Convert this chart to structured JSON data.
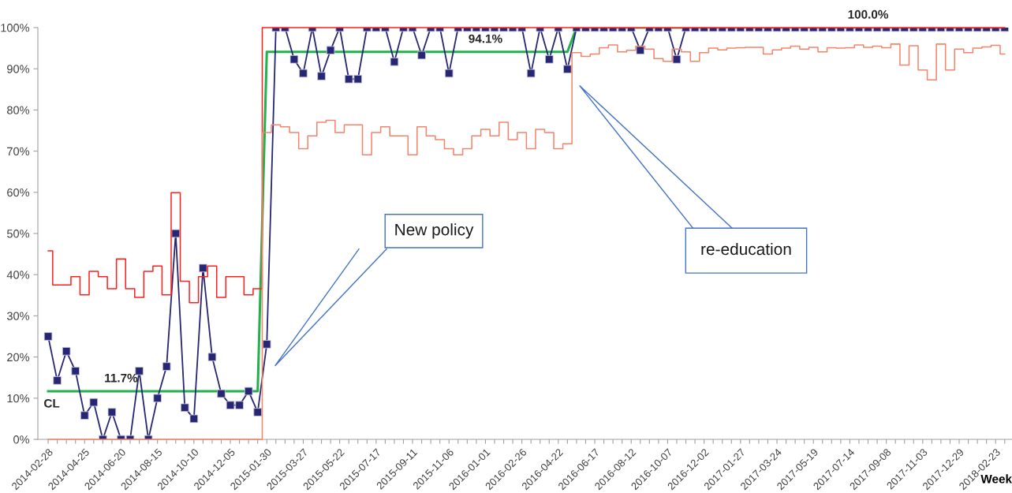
{
  "chart_data": {
    "type": "line",
    "categories": [
      "2014-02-28",
      null,
      null,
      null,
      "2014-04-25",
      null,
      null,
      null,
      "2014-06-20",
      null,
      null,
      null,
      "2014-08-15",
      null,
      null,
      null,
      "2014-10-10",
      null,
      null,
      null,
      "2014-12-05",
      null,
      null,
      null,
      "2015-01-30",
      null,
      null,
      null,
      "2015-03-27",
      null,
      null,
      null,
      "2015-05-22",
      null,
      null,
      null,
      "2015-07-17",
      null,
      null,
      null,
      "2015-09-11",
      null,
      null,
      null,
      "2015-11-06",
      null,
      null,
      null,
      "2016-01-01",
      null,
      null,
      null,
      "2016-02-26",
      null,
      null,
      null,
      "2016-04-22",
      null,
      null,
      null,
      "2016-06-17",
      null,
      null,
      null,
      "2016-08-12",
      null,
      null,
      null,
      "2016-10-07",
      null,
      null,
      null,
      "2016-12-02",
      null,
      null,
      null,
      "2017-01-27",
      null,
      null,
      null,
      "2017-03-24",
      null,
      null,
      null,
      "2017-05-19",
      null,
      null,
      null,
      "2017-07-14",
      null,
      null,
      null,
      "2017-09-08",
      null,
      null,
      null,
      "2017-11-03",
      null,
      null,
      null,
      "2017-12-29",
      null,
      null,
      null,
      "2018-02-23",
      null
    ],
    "xlabel": "Week",
    "ylim": [
      0,
      100
    ],
    "yticks": [
      {
        "value": 0,
        "label": "0%"
      },
      {
        "value": 10,
        "label": "10%"
      },
      {
        "value": 20,
        "label": "20%"
      },
      {
        "value": 30,
        "label": "30%"
      },
      {
        "value": 40,
        "label": "40%"
      },
      {
        "value": 50,
        "label": "50%"
      },
      {
        "value": 60,
        "label": "60%"
      },
      {
        "value": 70,
        "label": "70%"
      },
      {
        "value": 80,
        "label": "80%"
      },
      {
        "value": 90,
        "label": "90%"
      },
      {
        "value": 100,
        "label": "100%"
      }
    ],
    "grid": false,
    "legend": false,
    "series": [
      {
        "type": "step",
        "color": "#ff2020",
        "values": [
          45.8,
          37.5,
          37.5,
          39.5,
          35.1,
          40.8,
          39.5,
          36.6,
          43.8,
          36.6,
          34.5,
          40.8,
          42.1,
          35.1,
          59.9,
          38.4,
          33.2,
          39.5,
          42.1,
          34.5,
          39.5,
          39.5,
          35.1,
          36.6,
          100,
          100,
          100,
          100,
          100,
          100,
          100,
          100,
          100,
          100,
          100,
          100,
          100,
          100,
          100,
          100,
          100,
          100,
          100,
          100,
          100,
          100,
          100,
          100,
          100,
          100,
          100,
          100,
          100,
          100,
          100,
          100,
          100,
          100,
          100,
          100,
          100,
          100,
          100,
          100,
          100,
          100,
          100,
          100,
          100,
          100,
          100,
          100,
          100,
          100,
          100,
          100,
          100,
          100,
          100,
          100,
          100,
          100,
          100,
          100,
          100,
          100,
          100,
          100,
          100,
          100,
          100,
          100,
          100,
          100,
          100,
          100,
          100,
          100,
          100,
          100,
          100,
          100,
          100,
          100,
          100,
          100
        ]
      },
      {
        "type": "step",
        "color": "#f4846a",
        "values": [
          0,
          0,
          0,
          0,
          0,
          0,
          0,
          0,
          0,
          0,
          0,
          0,
          0,
          0,
          0,
          0,
          0,
          0,
          0,
          0,
          0,
          0,
          0,
          0,
          74.5,
          76.4,
          75.9,
          74.5,
          70.6,
          73.7,
          77.0,
          77.5,
          74.5,
          76.4,
          76.4,
          69.1,
          74.5,
          75.9,
          73.7,
          73.7,
          69.1,
          75.9,
          73.7,
          72.8,
          70.6,
          69.1,
          70.6,
          73.7,
          75.3,
          73.7,
          77.0,
          72.8,
          74.5,
          70.6,
          75.3,
          74.5,
          70.6,
          71.8,
          93.9,
          93.0,
          93.6,
          95.1,
          95.8,
          94.1,
          94.5,
          95.5,
          94.8,
          92.5,
          91.8,
          94.8,
          94.1,
          91.8,
          93.9,
          95.0,
          94.6,
          95.0,
          95.1,
          95.2,
          95.2,
          93.6,
          94.6,
          95.0,
          95.5,
          94.8,
          95.2,
          94.1,
          95.1,
          95.0,
          95.1,
          95.8,
          95.2,
          95.5,
          95.1,
          96.0,
          90.9,
          95.6,
          89.7,
          87.3,
          96.0,
          89.7,
          94.8,
          93.9,
          95.0,
          95.3,
          95.7,
          93.6
        ]
      },
      {
        "color": "#22b14c",
        "marker": "none",
        "values": [
          11.7,
          11.7,
          11.7,
          11.7,
          11.7,
          11.7,
          11.7,
          11.7,
          11.7,
          11.7,
          11.7,
          11.7,
          11.7,
          11.7,
          11.7,
          11.7,
          11.7,
          11.7,
          11.7,
          11.7,
          11.7,
          11.7,
          11.7,
          11.7,
          94.1,
          94.1,
          94.1,
          94.1,
          94.1,
          94.1,
          94.1,
          94.1,
          94.1,
          94.1,
          94.1,
          94.1,
          94.1,
          94.1,
          94.1,
          94.1,
          94.1,
          94.1,
          94.1,
          94.1,
          94.1,
          94.1,
          94.1,
          94.1,
          94.1,
          94.1,
          94.1,
          94.1,
          94.1,
          94.1,
          94.1,
          94.1,
          94.1,
          94.1,
          100,
          100,
          100,
          100,
          100,
          100,
          100,
          100,
          100,
          100,
          100,
          100,
          100,
          100,
          100,
          100,
          100,
          100,
          100,
          100,
          100,
          100,
          100,
          100,
          100,
          100,
          100,
          100,
          100,
          100,
          100,
          100,
          100,
          100,
          100,
          100,
          100,
          100,
          100,
          100,
          100,
          100,
          100,
          100,
          100,
          100,
          100,
          100
        ],
        "value_labels": [
          null,
          null,
          null,
          null,
          null,
          null,
          null,
          null,
          "11.7%",
          null,
          null,
          null,
          null,
          null,
          null,
          null,
          null,
          null,
          null,
          null,
          null,
          null,
          null,
          null,
          null,
          null,
          null,
          null,
          null,
          null,
          null,
          null,
          null,
          null,
          null,
          null,
          null,
          null,
          null,
          null,
          null,
          null,
          null,
          null,
          null,
          null,
          null,
          null,
          "94.1%",
          null,
          null,
          null,
          null,
          null,
          null,
          null,
          null,
          null,
          null,
          null,
          null,
          null,
          null,
          null,
          null,
          null,
          null,
          null,
          null,
          null,
          null,
          null,
          null,
          null,
          null,
          null,
          null,
          null,
          null,
          null,
          null,
          null,
          null,
          null,
          null,
          null,
          null,
          null,
          null,
          null,
          "100.0%",
          null,
          null,
          null,
          null,
          null,
          null,
          null,
          null,
          null,
          null,
          null,
          null,
          null,
          null,
          null
        ]
      },
      {
        "color": "#262673",
        "marker": "square",
        "values": [
          25.0,
          14.3,
          21.4,
          16.6,
          5.8,
          9.0,
          0,
          6.6,
          0,
          0,
          16.6,
          0,
          10.0,
          17.7,
          50.0,
          7.7,
          5.0,
          41.6,
          20.0,
          11.1,
          8.3,
          8.3,
          11.7,
          6.6,
          23.1,
          100,
          100,
          92.3,
          88.9,
          100,
          88.2,
          94.5,
          100,
          87.5,
          87.5,
          100,
          100,
          100,
          91.7,
          100,
          100,
          93.3,
          100,
          100,
          88.9,
          100,
          100,
          100,
          100,
          100,
          100,
          100,
          100,
          88.9,
          100,
          92.3,
          100,
          89.9,
          100,
          100,
          100,
          100,
          100,
          100,
          100,
          94.5,
          100,
          100,
          100,
          92.3,
          100,
          100,
          100,
          100,
          100,
          100,
          100,
          100,
          100,
          100,
          100,
          100,
          100,
          100,
          100,
          100,
          100,
          100,
          100,
          100,
          100,
          100,
          100,
          100,
          100,
          100,
          100,
          100,
          100,
          100,
          100,
          100,
          100,
          100,
          100,
          100
        ]
      }
    ],
    "annotations": [
      "CL",
      "New policy",
      "re-education"
    ]
  }
}
